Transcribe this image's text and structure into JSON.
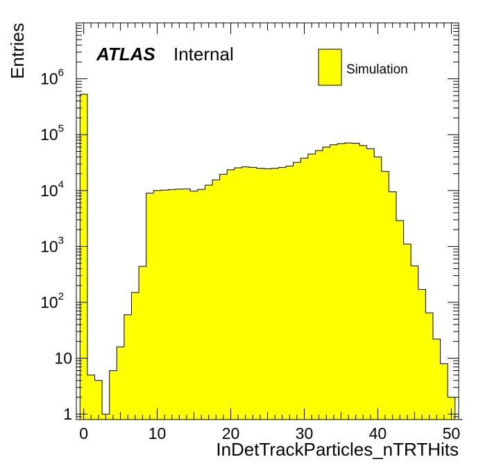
{
  "atlas_label": {
    "bold": "ATLAS",
    "normal": "Internal"
  },
  "legend": {
    "entries": [
      {
        "label": "Simulation",
        "fill": "#ffff00"
      }
    ],
    "position": "top-right"
  },
  "colors": {
    "fill": "#ffff00",
    "line": "#000000"
  },
  "chart_data": {
    "type": "bar",
    "histogram": true,
    "title": "",
    "xlabel": "InDetTrackParticles_nTRTHits",
    "ylabel": "Entries",
    "xlim": [
      -1,
      51
    ],
    "ylim": [
      0.8,
      10000000
    ],
    "yscale": "log",
    "grid": false,
    "bin_width": 1,
    "x_start": -0.5,
    "values": [
      530000,
      5,
      4,
      1,
      6,
      16,
      60,
      150,
      440,
      9000,
      10000,
      10200,
      10400,
      10600,
      10700,
      9800,
      10500,
      12500,
      15500,
      19500,
      23500,
      25500,
      26500,
      26000,
      25000,
      24500,
      25000,
      26000,
      27500,
      32000,
      38000,
      45000,
      52000,
      60000,
      66000,
      69000,
      71000,
      70000,
      64000,
      56000,
      40000,
      22000,
      9500,
      2900,
      1100,
      450,
      170,
      65,
      22,
      8,
      2,
      0.8
    ],
    "x_ticks": [
      0,
      10,
      20,
      30,
      40,
      50
    ],
    "x_tick_labels": [
      "0",
      "10",
      "20",
      "30",
      "40",
      "50"
    ],
    "y_ticks": [
      1,
      10,
      100,
      1000,
      10000,
      100000,
      1000000
    ],
    "y_tick_labels": [
      {
        "base": "1",
        "exp": ""
      },
      {
        "base": "10",
        "exp": ""
      },
      {
        "base": "10",
        "exp": "2"
      },
      {
        "base": "10",
        "exp": "3"
      },
      {
        "base": "10",
        "exp": "4"
      },
      {
        "base": "10",
        "exp": "5"
      },
      {
        "base": "10",
        "exp": "6"
      }
    ]
  }
}
